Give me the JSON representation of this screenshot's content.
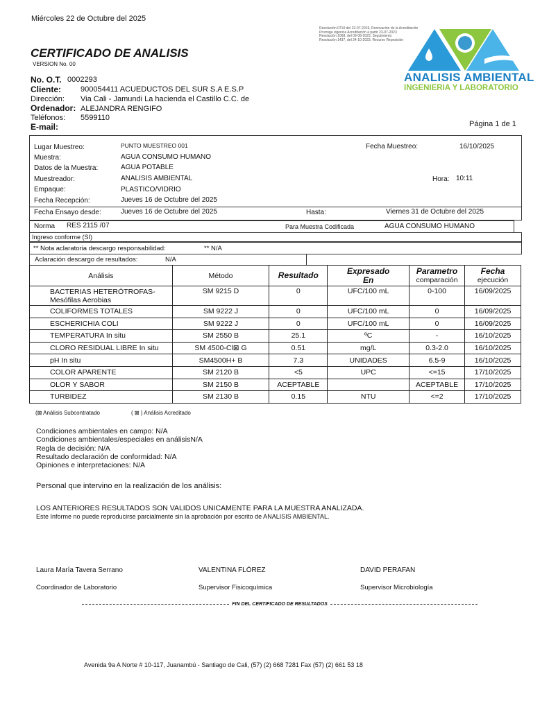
{
  "date_header": "Miércoles 22 de Octubre del 2025",
  "title": "CERTIFICADO DE ANALISIS",
  "version": "VERSION No. 00",
  "resolutions": [
    "Resolución 0710 del 22-07-2019, Renovación de la Acreditación",
    "Prorroga vigencia Acreditación a partir 23-07-2023",
    "Resolución 1068, del 09-08-2023, Seguimiento",
    "Resolución 1437, del 24-10-2023, Recurso Reposición"
  ],
  "logo": {
    "name": "ANALISIS AMBIENTAL",
    "tagline": "INGENIERIA Y LABORATORIO",
    "blue": "#1b7fc3",
    "green": "#8dc63f"
  },
  "client": {
    "ot_label": "No. O.T.",
    "ot": "0002293",
    "cliente_label": "Cliente:",
    "cliente": "900054411 ACUEDUCTOS DEL SUR S.A E.S.P",
    "direccion_label": "Dirección:",
    "direccion": "Via Cali - Jamundi La hacienda el Castillo C.C. de",
    "ordenador_label": "Ordenador:",
    "ordenador": "ALEJANDRA RENGIFO",
    "telefonos_label": "Teléfonos:",
    "telefonos": "5599110",
    "email_label": "E-mail:"
  },
  "page": "Página  1 de 1",
  "sample": {
    "lugar_label": "Lugar Muestreo:",
    "lugar": "PUNTO MUESTREO 001",
    "fecha_muestreo_label": "Fecha Muestreo:",
    "fecha_muestreo": "16/10/2025",
    "muestra_label": "Muestra:",
    "muestra": "AGUA CONSUMO HUMANO",
    "datos_label": "Datos de la Muestra:",
    "datos": "AGUA POTABLE",
    "muestreador_label": "Muestreador:",
    "muestreador": "ANALISIS AMBIENTAL",
    "hora_label": "Hora:",
    "hora": "10:11",
    "empaque_label": "Empaque:",
    "empaque": "PLASTICO/VIDRIO",
    "recepcion_label": "Fecha Recepción:",
    "recepcion": "Jueves 16 de Octubre del 2025",
    "ensayo_label": "Fecha Ensayo desde:",
    "ensayo": "Jueves 16 de Octubre del 2025",
    "hasta_label": "Hasta:",
    "hasta": "Viernes 31 de Octubre del 2025",
    "norma_label": "Norma",
    "norma": "RES 2115 /07",
    "codificada_label": "Para Muestra Codificada",
    "codificada": "AGUA CONSUMO HUMANO",
    "ingreso": "Ingreso conforme (SI)",
    "nota_label": "**   Nota aclaratoria descargo responsabilidad:",
    "nota": "**   N/A",
    "aclaracion_label": "Aclaración descargo de resultados:",
    "aclaracion": "N/A"
  },
  "table": {
    "headers": [
      "Análisis",
      "Método",
      "Resultado",
      "Expresado",
      "En",
      "Parametro",
      "comparación",
      "Fecha",
      "ejecución"
    ],
    "rows": [
      [
        "BACTERIAS HETERÓTROFAS-",
        "SM 9215 D",
        "0",
        "UFC/100 mL",
        "0-100",
        "16/09/2025",
        "Mesófilas Aerobias"
      ],
      [
        "COLIFORMES TOTALES",
        "SM 9222 J",
        "0",
        "UFC/100 mL",
        "0",
        "16/09/2025"
      ],
      [
        "ESCHERICHIA COLI",
        "SM 9222 J",
        "0",
        "UFC/100 mL",
        "0",
        "16/09/2025"
      ],
      [
        "TEMPERATURA In situ",
        "SM 2550 B",
        "25.1",
        "ºC",
        "-",
        "16/10/2025"
      ],
      [
        "CLORO RESIDUAL LIBRE In situ",
        "SM 4500-Cl⊠ G",
        "0.51",
        "mg/L",
        "0.3-2.0",
        "16/10/2025"
      ],
      [
        "pH In situ",
        "SM4500H+ B",
        "7.3",
        "UNIDADES",
        "6.5-9",
        "16/10/2025"
      ],
      [
        "COLOR APARENTE",
        "SM 2120 B",
        "<5",
        "UPC",
        "<=15",
        "17/10/2025"
      ],
      [
        "OLOR Y SABOR",
        "SM 2150 B",
        "ACEPTABLE",
        "",
        "ACEPTABLE",
        "17/10/2025"
      ],
      [
        "TURBIDEZ",
        "SM 2130 B",
        "0.15",
        "NTU",
        "<=2",
        "17/10/2025"
      ]
    ]
  },
  "legend": {
    "subcontratado": "(⊠ Análisis Subcontratado",
    "acreditado": "( ⊠ ) Análisis Acreditado"
  },
  "conditions": [
    "Condiciones ambientales en campo: N/A",
    "Condiciones ambientales/especiales en análisisN/A",
    "Regla de decisión: N/A",
    "Resultado declaración de conformidad: N/A",
    "Opiniones e interpretaciones: N/A"
  ],
  "personal": "Personal que intervino en la realización de los análisis:",
  "validity": "LOS ANTERIORES RESULTADOS SON VALIDOS UNICAMENTE PARA LA MUESTRA ANALIZADA.",
  "reproduction": "Este Informe no puede reproducirse parcialmente sin la aprobación por escrito de ANALISIS AMBIENTAL.",
  "signatures": [
    {
      "name": "Laura María Tavera Serrano",
      "role": "Coordinador de Laboratorio"
    },
    {
      "name": "VALENTINA FLÓREZ",
      "role": "Supervisor Fisicoquímica"
    },
    {
      "name": "DAVID PERAFAN",
      "role": "Supervisor Microbiología"
    }
  ],
  "end": "FIN DEL CERTIFICADO DE RESULTADOS",
  "footer": "Avenida 9a A Norte # 10-117, Juanambú - Santiago de Cali, (57) (2) 668 7281  Fax (57) (2) 661 53 18"
}
